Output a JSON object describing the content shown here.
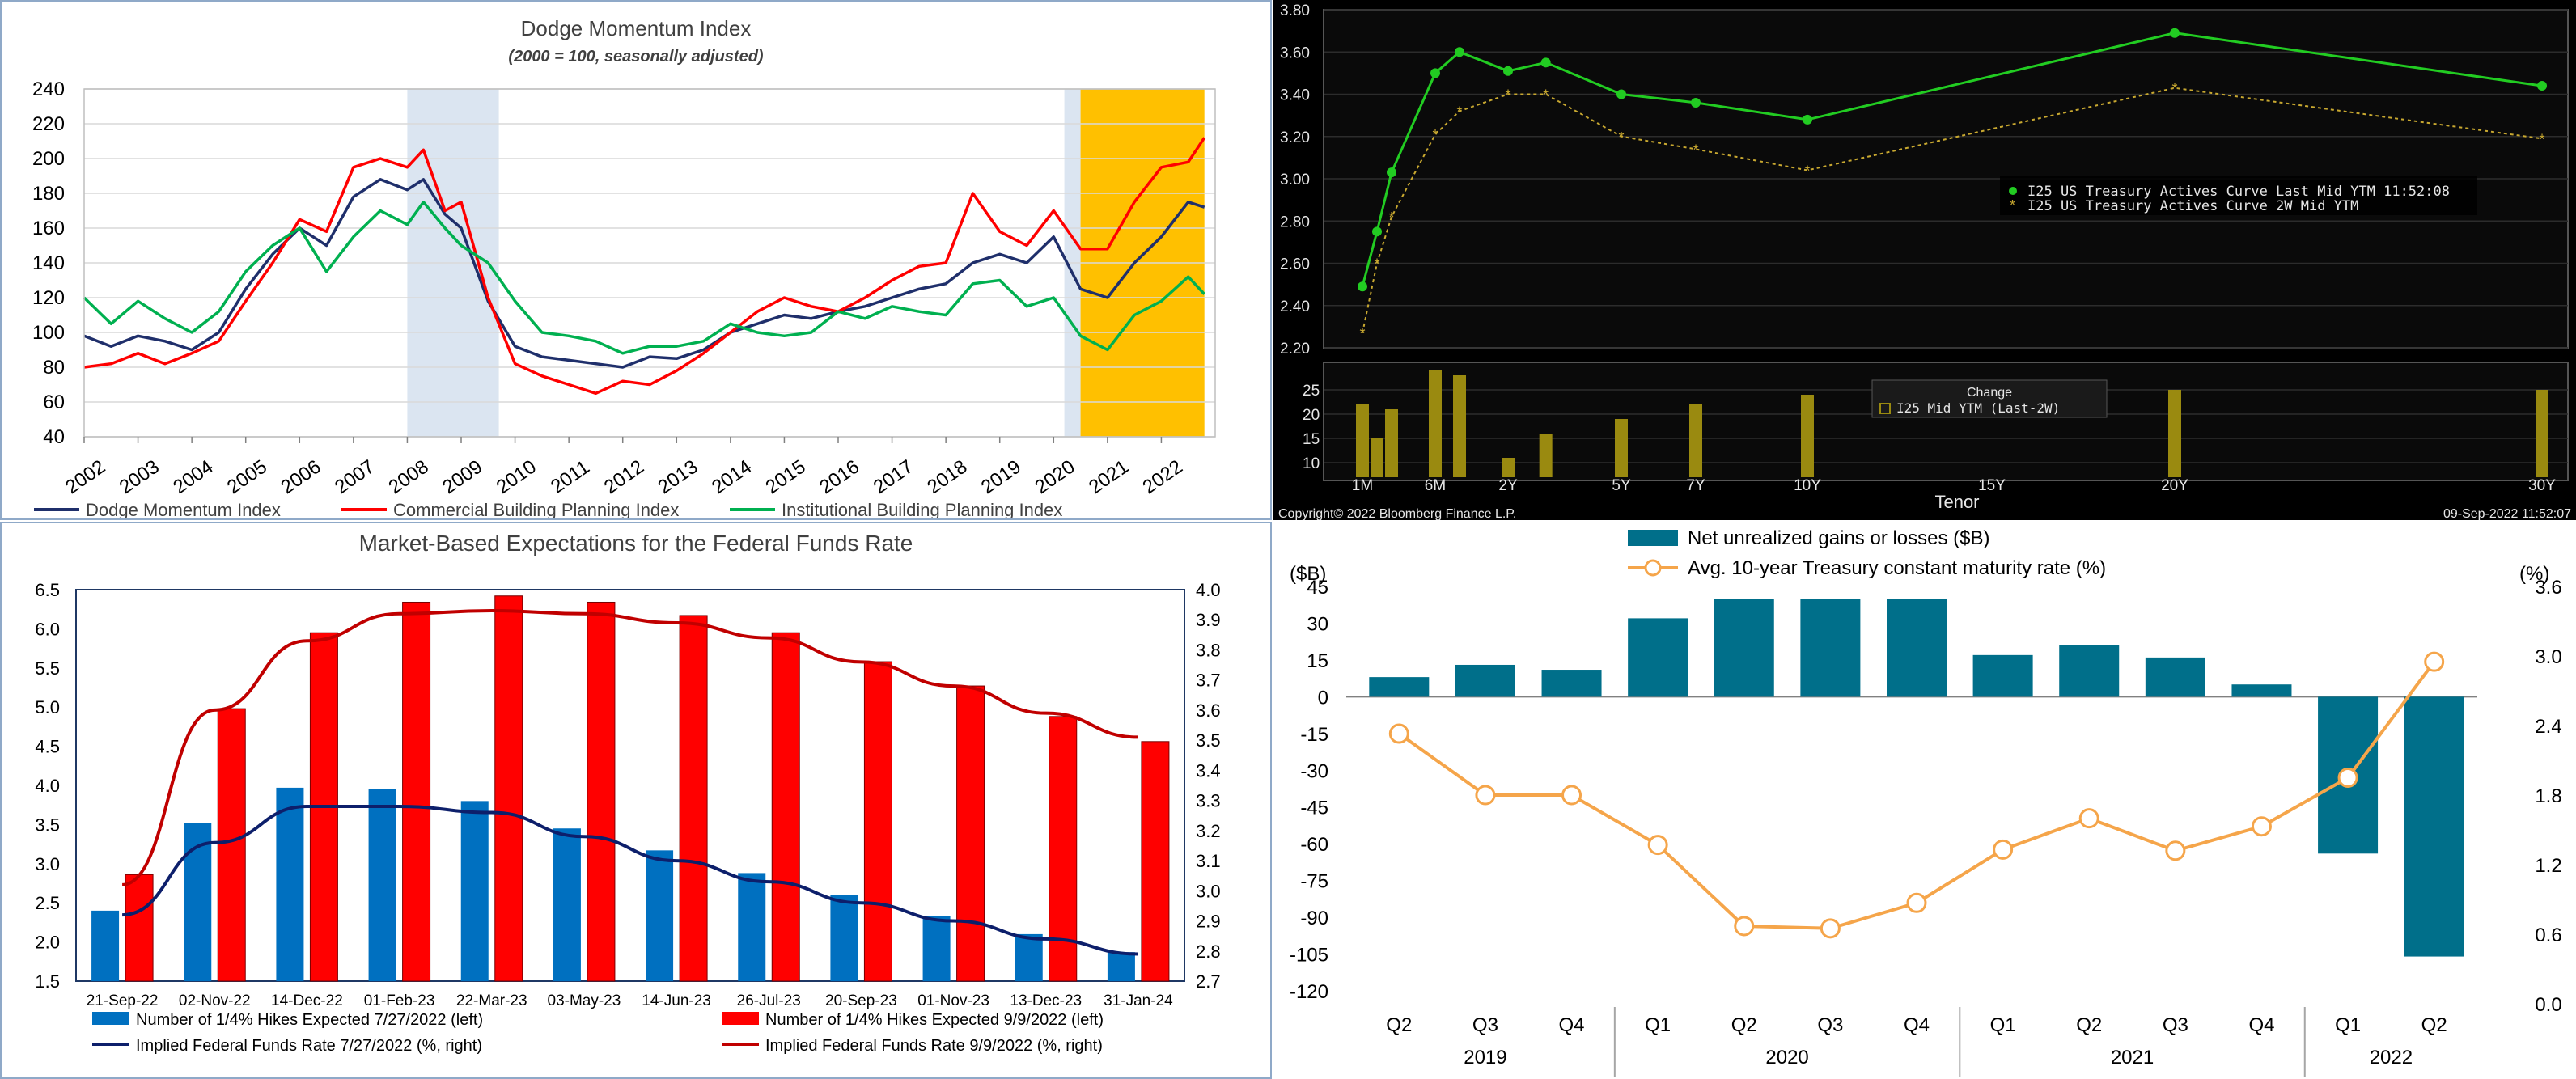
{
  "chart_data": [
    {
      "type": "line",
      "title": "Dodge Momentum Index",
      "subtitle": "(2000 = 100, seasonally adjusted)",
      "ylim": [
        40,
        240
      ],
      "yticks": [
        40,
        60,
        80,
        100,
        120,
        140,
        160,
        180,
        200,
        220,
        240
      ],
      "xlim": [
        2002,
        2023
      ],
      "xticks": [
        "2002",
        "2003",
        "2004",
        "2005",
        "2006",
        "2007",
        "2008",
        "2009",
        "2010",
        "2011",
        "2012",
        "2013",
        "2014",
        "2015",
        "2016",
        "2017",
        "2018",
        "2019",
        "2020",
        "2021",
        "2022"
      ],
      "shaded_periods": [
        {
          "from": 2008.0,
          "to": 2009.7,
          "color": "#dbe5f1"
        },
        {
          "from": 2020.2,
          "to": 2020.5,
          "color": "#dbe5f1"
        },
        {
          "from": 2020.5,
          "to": 2022.8,
          "color": "#ffc000"
        }
      ],
      "legend_position": "bottom",
      "series": [
        {
          "name": "Dodge Momentum Index",
          "color": "#1f2f6b",
          "points": [
            [
              2002.0,
              98
            ],
            [
              2002.5,
              92
            ],
            [
              2003.0,
              98
            ],
            [
              2003.5,
              95
            ],
            [
              2004.0,
              90
            ],
            [
              2004.5,
              100
            ],
            [
              2005.0,
              125
            ],
            [
              2005.5,
              145
            ],
            [
              2006.0,
              160
            ],
            [
              2006.5,
              150
            ],
            [
              2007.0,
              178
            ],
            [
              2007.5,
              188
            ],
            [
              2008.0,
              182
            ],
            [
              2008.3,
              188
            ],
            [
              2008.7,
              168
            ],
            [
              2009.0,
              160
            ],
            [
              2009.5,
              118
            ],
            [
              2010.0,
              92
            ],
            [
              2010.5,
              86
            ],
            [
              2011.0,
              84
            ],
            [
              2011.5,
              82
            ],
            [
              2012.0,
              80
            ],
            [
              2012.5,
              86
            ],
            [
              2013.0,
              85
            ],
            [
              2013.5,
              90
            ],
            [
              2014.0,
              100
            ],
            [
              2014.5,
              105
            ],
            [
              2015.0,
              110
            ],
            [
              2015.5,
              108
            ],
            [
              2016.0,
              112
            ],
            [
              2016.5,
              115
            ],
            [
              2017.0,
              120
            ],
            [
              2017.5,
              125
            ],
            [
              2018.0,
              128
            ],
            [
              2018.5,
              140
            ],
            [
              2019.0,
              145
            ],
            [
              2019.5,
              140
            ],
            [
              2020.0,
              155
            ],
            [
              2020.5,
              125
            ],
            [
              2021.0,
              120
            ],
            [
              2021.5,
              140
            ],
            [
              2022.0,
              155
            ],
            [
              2022.5,
              175
            ],
            [
              2022.8,
              172
            ]
          ]
        },
        {
          "name": "Commercial Building Planning Index",
          "color": "#ff0000",
          "points": [
            [
              2002.0,
              80
            ],
            [
              2002.5,
              82
            ],
            [
              2003.0,
              88
            ],
            [
              2003.5,
              82
            ],
            [
              2004.0,
              88
            ],
            [
              2004.5,
              95
            ],
            [
              2005.0,
              118
            ],
            [
              2005.5,
              140
            ],
            [
              2006.0,
              165
            ],
            [
              2006.5,
              158
            ],
            [
              2007.0,
              195
            ],
            [
              2007.5,
              200
            ],
            [
              2008.0,
              195
            ],
            [
              2008.3,
              205
            ],
            [
              2008.7,
              170
            ],
            [
              2009.0,
              175
            ],
            [
              2009.5,
              120
            ],
            [
              2010.0,
              82
            ],
            [
              2010.5,
              75
            ],
            [
              2011.0,
              70
            ],
            [
              2011.5,
              65
            ],
            [
              2012.0,
              72
            ],
            [
              2012.5,
              70
            ],
            [
              2013.0,
              78
            ],
            [
              2013.5,
              88
            ],
            [
              2014.0,
              100
            ],
            [
              2014.5,
              112
            ],
            [
              2015.0,
              120
            ],
            [
              2015.5,
              115
            ],
            [
              2016.0,
              112
            ],
            [
              2016.5,
              120
            ],
            [
              2017.0,
              130
            ],
            [
              2017.5,
              138
            ],
            [
              2018.0,
              140
            ],
            [
              2018.5,
              180
            ],
            [
              2019.0,
              158
            ],
            [
              2019.5,
              150
            ],
            [
              2020.0,
              170
            ],
            [
              2020.5,
              148
            ],
            [
              2021.0,
              148
            ],
            [
              2021.5,
              175
            ],
            [
              2022.0,
              195
            ],
            [
              2022.5,
              198
            ],
            [
              2022.8,
              212
            ]
          ]
        },
        {
          "name": "Institutional Building Planning Index",
          "color": "#00b050",
          "points": [
            [
              2002.0,
              120
            ],
            [
              2002.5,
              105
            ],
            [
              2003.0,
              118
            ],
            [
              2003.5,
              108
            ],
            [
              2004.0,
              100
            ],
            [
              2004.5,
              112
            ],
            [
              2005.0,
              135
            ],
            [
              2005.5,
              150
            ],
            [
              2006.0,
              160
            ],
            [
              2006.5,
              135
            ],
            [
              2007.0,
              155
            ],
            [
              2007.5,
              170
            ],
            [
              2008.0,
              162
            ],
            [
              2008.3,
              175
            ],
            [
              2008.7,
              160
            ],
            [
              2009.0,
              150
            ],
            [
              2009.5,
              140
            ],
            [
              2010.0,
              118
            ],
            [
              2010.5,
              100
            ],
            [
              2011.0,
              98
            ],
            [
              2011.5,
              95
            ],
            [
              2012.0,
              88
            ],
            [
              2012.5,
              92
            ],
            [
              2013.0,
              92
            ],
            [
              2013.5,
              95
            ],
            [
              2014.0,
              105
            ],
            [
              2014.5,
              100
            ],
            [
              2015.0,
              98
            ],
            [
              2015.5,
              100
            ],
            [
              2016.0,
              112
            ],
            [
              2016.5,
              108
            ],
            [
              2017.0,
              115
            ],
            [
              2017.5,
              112
            ],
            [
              2018.0,
              110
            ],
            [
              2018.5,
              128
            ],
            [
              2019.0,
              130
            ],
            [
              2019.5,
              115
            ],
            [
              2020.0,
              120
            ],
            [
              2020.5,
              98
            ],
            [
              2021.0,
              90
            ],
            [
              2021.5,
              110
            ],
            [
              2022.0,
              118
            ],
            [
              2022.5,
              132
            ],
            [
              2022.8,
              122
            ]
          ]
        }
      ]
    },
    {
      "type": "line",
      "ylim": [
        2.2,
        3.8
      ],
      "yticks": [
        "2.20",
        "2.40",
        "2.60",
        "2.80",
        "3.00",
        "3.20",
        "3.40",
        "3.60",
        "3.80"
      ],
      "xticks": [
        "1M",
        "6M",
        "2Y",
        "5Y",
        "7Y",
        "10Y",
        "15Y",
        "20Y",
        "30Y"
      ],
      "xlabel": "Tenor",
      "legend_position": "middle-right",
      "series": [
        {
          "name": "I25 US Treasury Actives Curve Last Mid YTM 11:52:08",
          "color": "#22cc22",
          "x": [
            "1M",
            "2M",
            "3M",
            "6M",
            "1Y",
            "2Y",
            "3Y",
            "5Y",
            "7Y",
            "10Y",
            "20Y",
            "30Y"
          ],
          "values": [
            2.49,
            2.75,
            3.03,
            3.5,
            3.6,
            3.51,
            3.55,
            3.4,
            3.36,
            3.28,
            3.69,
            3.44
          ]
        },
        {
          "name": "I25 US Treasury Actives Curve 2W Mid YTM",
          "color": "#c8a830",
          "x": [
            "1M",
            "2M",
            "3M",
            "6M",
            "1Y",
            "2Y",
            "3Y",
            "5Y",
            "7Y",
            "10Y",
            "20Y",
            "30Y"
          ],
          "values": [
            2.27,
            2.6,
            2.82,
            3.21,
            3.32,
            3.4,
            3.4,
            3.2,
            3.14,
            3.04,
            3.43,
            3.19
          ]
        }
      ],
      "change_panel": {
        "type": "bar",
        "legend_title": "Change",
        "legend_label": "I25 Mid YTM (Last-2W)",
        "yticks": [
          "10",
          "15",
          "20",
          "25"
        ],
        "x": [
          "1M",
          "2M",
          "3M",
          "6M",
          "1Y",
          "2Y",
          "3Y",
          "5Y",
          "7Y",
          "10Y",
          "20Y",
          "30Y"
        ],
        "values": [
          22,
          15,
          21,
          29,
          28,
          11,
          16,
          19,
          22,
          24,
          25,
          25
        ]
      },
      "footer_left": "Copyright© 2022 Bloomberg Finance L.P.",
      "footer_right": "09-Sep-2022 11:52:07"
    },
    {
      "type": "bar",
      "title": "Market-Based Expectations for the Federal Funds Rate",
      "categories": [
        "21-Sep-22",
        "02-Nov-22",
        "14-Dec-22",
        "01-Feb-23",
        "22-Mar-23",
        "03-May-23",
        "14-Jun-23",
        "26-Jul-23",
        "20-Sep-23",
        "01-Nov-23",
        "13-Dec-23",
        "31-Jan-24"
      ],
      "ylim_left": [
        1.5,
        6.5
      ],
      "yticks_left": [
        "1.5",
        "2.0",
        "2.5",
        "3.0",
        "3.5",
        "4.0",
        "4.5",
        "5.0",
        "5.5",
        "6.0",
        "6.5"
      ],
      "ylim_right": [
        2.7,
        4.0
      ],
      "yticks_right": [
        "2.7",
        "2.8",
        "2.9",
        "3.0",
        "3.1",
        "3.2",
        "3.3",
        "3.4",
        "3.5",
        "3.6",
        "3.7",
        "3.8",
        "3.9",
        "4.0"
      ],
      "legend_position": "bottom",
      "series": [
        {
          "name": "Number of 1/4% Hikes Expected 7/27/2022 (left)",
          "kind": "bar",
          "axis": "left",
          "color": "#0070c0",
          "values": [
            2.4,
            3.52,
            3.97,
            3.95,
            3.8,
            3.45,
            3.17,
            2.88,
            2.6,
            2.33,
            2.1,
            1.87
          ]
        },
        {
          "name": "Number of 1/4% Hikes Expected 9/9/2022 (left)",
          "kind": "bar",
          "axis": "left",
          "color": "#ff0000",
          "values": [
            2.86,
            4.98,
            5.95,
            6.34,
            6.42,
            6.34,
            6.17,
            5.95,
            5.58,
            5.27,
            4.88,
            4.56
          ]
        },
        {
          "name": "Implied Federal Funds Rate 7/27/2022 (%, right)",
          "kind": "line",
          "axis": "right",
          "color": "#0d1f6b",
          "values": [
            2.92,
            3.16,
            3.28,
            3.28,
            3.26,
            3.18,
            3.1,
            3.03,
            2.96,
            2.9,
            2.84,
            2.79
          ]
        },
        {
          "name": "Implied Federal Funds Rate 9/9/2022 (%, right)",
          "kind": "line",
          "axis": "right",
          "color": "#c00000",
          "values": [
            3.02,
            3.6,
            3.83,
            3.92,
            3.93,
            3.92,
            3.89,
            3.84,
            3.76,
            3.68,
            3.59,
            3.51
          ]
        }
      ]
    },
    {
      "type": "bar",
      "legend_position": "top",
      "ylabel_left": "($B)",
      "ylabel_right": "(%)",
      "ylim_left": [
        -120,
        45
      ],
      "yticks_left": [
        "45",
        "30",
        "15",
        "0",
        "-15",
        "-30",
        "-45",
        "-60",
        "-75",
        "-90",
        "-105",
        "-120"
      ],
      "ylim_right": [
        0.0,
        3.6
      ],
      "yticks_right": [
        "3.6",
        "3.0",
        "2.4",
        "1.8",
        "1.2",
        "0.6",
        "0.0"
      ],
      "categories": [
        "Q2",
        "Q3",
        "Q4",
        "Q1",
        "Q2",
        "Q3",
        "Q4",
        "Q1",
        "Q2",
        "Q3",
        "Q4",
        "Q1",
        "Q2"
      ],
      "years": [
        {
          "label": "2019",
          "span": 3
        },
        {
          "label": "2020",
          "span": 4
        },
        {
          "label": "2021",
          "span": 4
        },
        {
          "label": "2022",
          "span": 2
        }
      ],
      "series": [
        {
          "name": "Net unrealized gains or losses ($B)",
          "kind": "bar",
          "axis": "left",
          "color": "#006f8a",
          "values": [
            8,
            13,
            11,
            32,
            40,
            40,
            40,
            17,
            21,
            16,
            5,
            -64,
            -106
          ]
        },
        {
          "name": "Avg. 10-year Treasury constant maturity rate (%)",
          "kind": "line",
          "axis": "right",
          "color": "#f5a54a",
          "values": [
            2.33,
            1.8,
            1.8,
            1.37,
            0.67,
            0.65,
            0.87,
            1.33,
            1.6,
            1.32,
            1.53,
            1.95,
            2.95
          ]
        }
      ]
    }
  ]
}
